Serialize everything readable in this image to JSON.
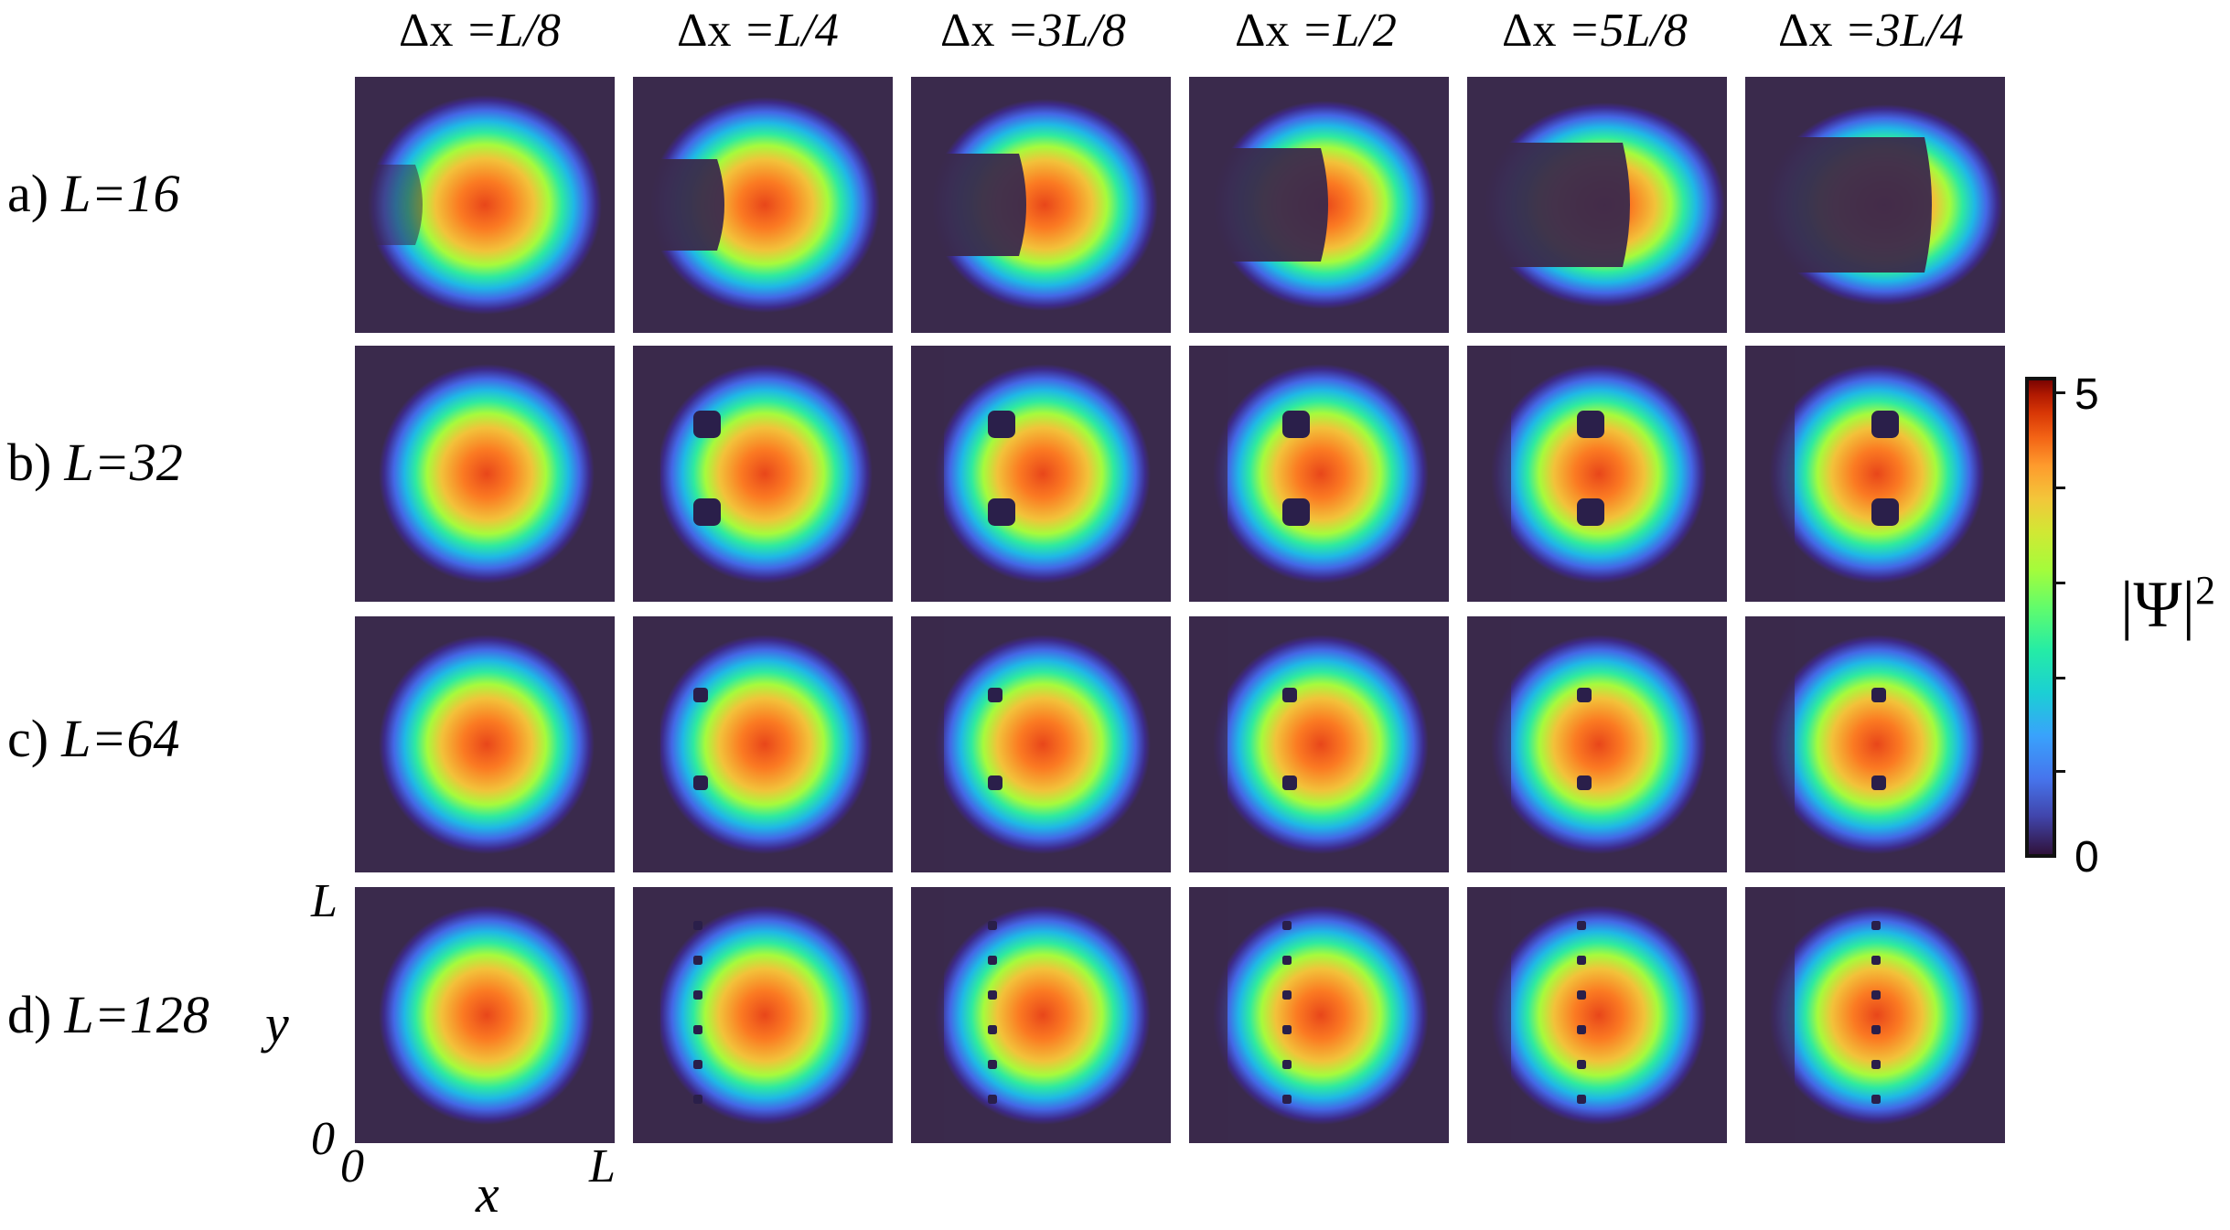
{
  "columns": [
    {
      "delta": "Δx",
      "rest": " =L/8"
    },
    {
      "delta": "Δx",
      "rest": " =L/4"
    },
    {
      "delta": "Δx",
      "rest": " =3L/8"
    },
    {
      "delta": "Δx",
      "rest": " =L/2"
    },
    {
      "delta": "Δx",
      "rest": " =5L/8"
    },
    {
      "delta": "Δx",
      "rest": " =3L/4"
    }
  ],
  "rows": [
    {
      "letter": "a)",
      "eq": "L=16"
    },
    {
      "letter": "b)",
      "eq": "L=32"
    },
    {
      "letter": "c)",
      "eq": "L=64"
    },
    {
      "letter": "d)",
      "eq": "L=128"
    }
  ],
  "axes": {
    "x_label": "x",
    "y_label": "y",
    "x_min": "0",
    "x_max": "L",
    "y_min": "0",
    "y_max": "L"
  },
  "colorbar": {
    "label": "|Ψ|",
    "label_sup": "2",
    "tick_max": "5",
    "tick_min": "0",
    "range": [
      0,
      5
    ],
    "colormap": "turbo"
  },
  "colors": {
    "background_dark": "#3a2a4c",
    "high": "#c0300a",
    "low": "#30123b"
  }
}
